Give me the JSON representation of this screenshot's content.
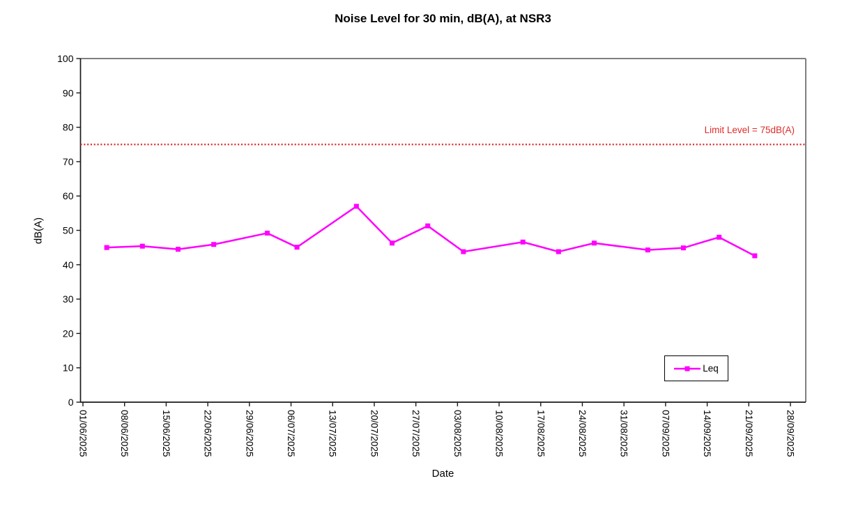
{
  "chart_data": {
    "type": "line",
    "title": "Noise Level for 30 min, dB(A), at NSR3",
    "xlabel": "Date",
    "ylabel": "dB(A)",
    "ylim": [
      0,
      100
    ],
    "y_ticks": [
      0,
      10,
      20,
      30,
      40,
      50,
      60,
      70,
      80,
      90,
      100
    ],
    "x_ticks": [
      "01/06/2025",
      "08/06/2025",
      "15/06/2025",
      "22/06/2025",
      "29/06/2025",
      "06/07/2025",
      "13/07/2025",
      "20/07/2025",
      "27/07/2025",
      "03/08/2025",
      "10/08/2025",
      "17/08/2025",
      "24/08/2025",
      "31/08/2025",
      "07/09/2025",
      "14/09/2025",
      "21/09/2025",
      "28/09/2025"
    ],
    "x_axis_start": "01/06/2025",
    "x_tick_rotation_deg": 90,
    "grid": false,
    "legend_position": "inside-bottom-right",
    "series": [
      {
        "name": "Leq",
        "color": "#FF00FF",
        "marker": "square",
        "points": [
          {
            "date": "05/06/2025",
            "value": 45.0
          },
          {
            "date": "11/06/2025",
            "value": 45.4
          },
          {
            "date": "17/06/2025",
            "value": 44.5
          },
          {
            "date": "23/06/2025",
            "value": 45.9
          },
          {
            "date": "02/07/2025",
            "value": 49.2
          },
          {
            "date": "07/07/2025",
            "value": 45.1
          },
          {
            "date": "17/07/2025",
            "value": 57.0
          },
          {
            "date": "23/07/2025",
            "value": 46.3
          },
          {
            "date": "29/07/2025",
            "value": 51.3
          },
          {
            "date": "04/08/2025",
            "value": 43.8
          },
          {
            "date": "14/08/2025",
            "value": 46.6
          },
          {
            "date": "20/08/2025",
            "value": 43.8
          },
          {
            "date": "26/08/2025",
            "value": 46.3
          },
          {
            "date": "04/09/2025",
            "value": 44.3
          },
          {
            "date": "10/09/2025",
            "value": 44.9
          },
          {
            "date": "16/09/2025",
            "value": 48.0
          },
          {
            "date": "22/09/2025",
            "value": 42.6
          }
        ]
      }
    ],
    "limit_line": {
      "value": 75,
      "label": "Limit Level = 75dB(A)",
      "color": "#DF2B2B",
      "style": "dotted"
    }
  }
}
